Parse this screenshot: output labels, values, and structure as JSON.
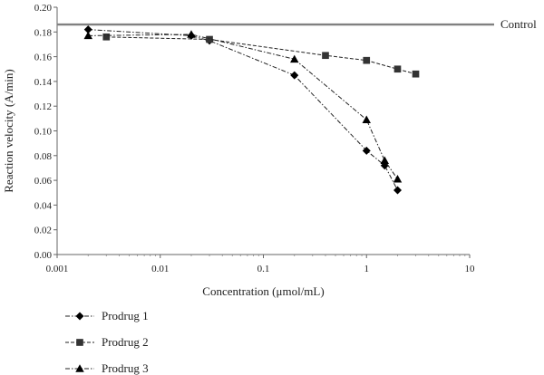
{
  "chart_data": {
    "type": "scatter",
    "xscale": "log",
    "xlim": [
      0.001,
      10
    ],
    "ylim": [
      0,
      0.2
    ],
    "xticks": [
      0.001,
      0.01,
      0.1,
      1,
      10
    ],
    "xtick_labels": [
      "0.001",
      "0.01",
      "0.1",
      "1",
      "10"
    ],
    "yticks": [
      0,
      0.02,
      0.04,
      0.06,
      0.08,
      0.1,
      0.12,
      0.14,
      0.16,
      0.18,
      0.2
    ],
    "ytick_labels": [
      "0.00",
      "0.02",
      "0.04",
      "0.06",
      "0.08",
      "0.10",
      "0.12",
      "0.14",
      "0.16",
      "0.18",
      "0.20"
    ],
    "xlabel": "Concentration (μmol/mL)",
    "ylabel": "Reaction velocity (A/min)",
    "grid": false,
    "legend_position": "bottom-left",
    "control": {
      "label": "Control",
      "value": 0.186,
      "color": "#808080"
    },
    "series": [
      {
        "name": "Prodrug 1",
        "marker": "diamond",
        "x": [
          0.002,
          0.02,
          0.03,
          0.2,
          1,
          1.5,
          2
        ],
        "y": [
          0.182,
          0.177,
          0.173,
          0.145,
          0.084,
          0.072,
          0.052
        ]
      },
      {
        "name": "Prodrug 2",
        "marker": "square",
        "x": [
          0.003,
          0.03,
          0.4,
          1,
          2,
          3
        ],
        "y": [
          0.176,
          0.174,
          0.161,
          0.157,
          0.15,
          0.146
        ]
      },
      {
        "name": "Prodrug 3",
        "marker": "triangle",
        "x": [
          0.002,
          0.02,
          0.2,
          1,
          1.5,
          2
        ],
        "y": [
          0.177,
          0.178,
          0.158,
          0.109,
          0.076,
          0.061
        ]
      }
    ]
  }
}
